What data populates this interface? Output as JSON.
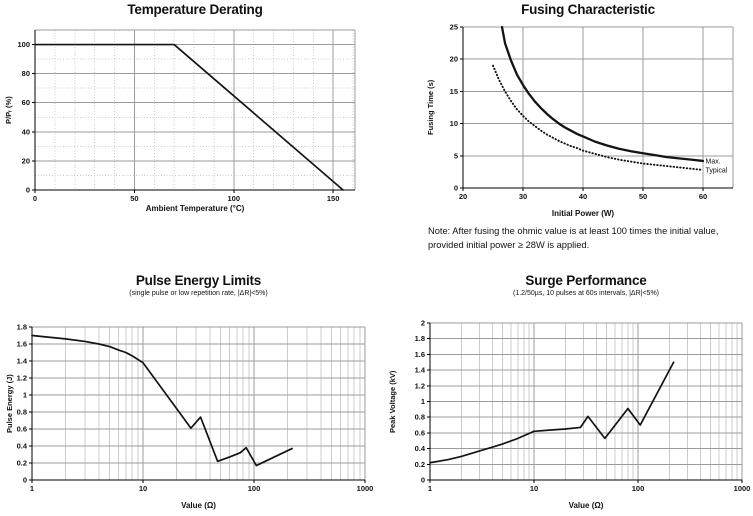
{
  "colors": {
    "curve": "#141414",
    "grid_major": "#9b9b9b",
    "grid_minor": "#cccccc",
    "axis": "#000000",
    "text": "#111111"
  },
  "chart_data": [
    {
      "type": "line",
      "title": "Temperature Derating",
      "subtitle": "",
      "xlabel": "Ambient Temperature (°C)",
      "ylabel": "P/Pᵣ (%)",
      "x_axis": {
        "scale": "linear",
        "min": 0,
        "max": 161,
        "ticks": [
          0,
          50,
          100,
          150
        ],
        "minor_step": 10,
        "minor_style": "dotted"
      },
      "y_axis": {
        "scale": "linear",
        "min": 0,
        "max": 110,
        "ticks": [
          0,
          20,
          40,
          60,
          80,
          100
        ],
        "minor_step": 10,
        "minor_style": "dotted"
      },
      "legend": "none",
      "grid": true,
      "series": [
        {
          "name": "derating-limit",
          "line": "solid",
          "bold": false,
          "label_at_end": false,
          "points": [
            [
              0,
              100
            ],
            [
              70,
              100
            ],
            [
              155,
              0
            ]
          ]
        }
      ]
    },
    {
      "type": "line",
      "title": "Fusing Characteristic",
      "subtitle": "",
      "xlabel": "Initial Power (W)",
      "ylabel": "Fusing Time (s)",
      "x_axis": {
        "scale": "linear",
        "min": 20,
        "max": 65,
        "ticks": [
          20,
          30,
          40,
          50,
          60
        ]
      },
      "y_axis": {
        "scale": "linear",
        "min": 0,
        "max": 25,
        "ticks": [
          0,
          5,
          10,
          15,
          20,
          25
        ]
      },
      "legend": "end-labels",
      "grid": true,
      "note": "Note: After fusing the ohmic value is at least 100 times the initial value, provided initial power ≥ 28W is applied.",
      "series": [
        {
          "name": "Max.",
          "line": "solid",
          "bold": true,
          "label_at_end": true,
          "points": [
            [
              26.5,
              25
            ],
            [
              27,
              22.5
            ],
            [
              28,
              19.8
            ],
            [
              29,
              17.6
            ],
            [
              30,
              16
            ],
            [
              31,
              14.6
            ],
            [
              32,
              13.4
            ],
            [
              33,
              12.4
            ],
            [
              34,
              11.5
            ],
            [
              35,
              10.7
            ],
            [
              36,
              10
            ],
            [
              37,
              9.4
            ],
            [
              38,
              8.9
            ],
            [
              39,
              8.4
            ],
            [
              40,
              8
            ],
            [
              42,
              7.2
            ],
            [
              44,
              6.6
            ],
            [
              46,
              6.1
            ],
            [
              48,
              5.7
            ],
            [
              50,
              5.4
            ],
            [
              52,
              5.1
            ],
            [
              54,
              4.8
            ],
            [
              56,
              4.6
            ],
            [
              58,
              4.4
            ],
            [
              60,
              4.2
            ]
          ]
        },
        {
          "name": "Typical",
          "line": "dotted",
          "bold": false,
          "label_at_end": true,
          "points": [
            [
              25,
              19
            ],
            [
              26,
              16.8
            ],
            [
              27,
              15
            ],
            [
              28,
              13.5
            ],
            [
              29,
              12.2
            ],
            [
              30,
              11.2
            ],
            [
              31,
              10.3
            ],
            [
              32,
              9.6
            ],
            [
              33,
              8.9
            ],
            [
              34,
              8.3
            ],
            [
              35,
              7.8
            ],
            [
              36,
              7.3
            ],
            [
              37,
              6.9
            ],
            [
              38,
              6.5
            ],
            [
              39,
              6.2
            ],
            [
              40,
              5.8
            ],
            [
              42,
              5.3
            ],
            [
              44,
              4.8
            ],
            [
              46,
              4.4
            ],
            [
              48,
              4.1
            ],
            [
              50,
              3.8
            ],
            [
              52,
              3.6
            ],
            [
              54,
              3.4
            ],
            [
              56,
              3.2
            ],
            [
              58,
              3.0
            ],
            [
              60,
              2.8
            ]
          ]
        }
      ]
    },
    {
      "type": "line",
      "title": "Pulse Energy Limits",
      "subtitle": "(single pulse or low repetition rate, |ΔR|<5%)",
      "xlabel": "Value (Ω)",
      "ylabel": "Pulse Energy (J)",
      "x_axis": {
        "scale": "log",
        "min": 1,
        "max": 1000,
        "ticks": [
          1,
          10,
          100,
          1000
        ]
      },
      "y_axis": {
        "scale": "linear",
        "min": 0,
        "max": 1.8,
        "ticks": [
          0,
          0.2,
          0.4,
          0.6,
          0.8,
          1,
          1.2,
          1.4,
          1.6,
          1.8
        ]
      },
      "legend": "none",
      "grid": true,
      "series": [
        {
          "name": "pulse-energy",
          "line": "solid",
          "bold": false,
          "label_at_end": false,
          "points": [
            [
              1,
              1.7
            ],
            [
              2,
              1.66
            ],
            [
              3,
              1.63
            ],
            [
              4,
              1.6
            ],
            [
              5,
              1.57
            ],
            [
              6,
              1.53
            ],
            [
              7,
              1.5
            ],
            [
              8,
              1.46
            ],
            [
              10,
              1.38
            ],
            [
              27,
              0.61
            ],
            [
              33,
              0.74
            ],
            [
              47,
              0.22
            ],
            [
              60,
              0.27
            ],
            [
              75,
              0.32
            ],
            [
              85,
              0.38
            ],
            [
              105,
              0.17
            ],
            [
              220,
              0.37
            ]
          ]
        }
      ]
    },
    {
      "type": "line",
      "title": "Surge Performance",
      "subtitle": "(1.2/50µs, 10 pulses at 60s intervals, |ΔR|<5%)",
      "xlabel": "Value (Ω)",
      "ylabel": "Peak Voltage (kV)",
      "x_axis": {
        "scale": "log",
        "min": 1,
        "max": 1000,
        "ticks": [
          1,
          10,
          100,
          1000
        ]
      },
      "y_axis": {
        "scale": "linear",
        "min": 0,
        "max": 2,
        "ticks": [
          0,
          0.2,
          0.4,
          0.6,
          0.8,
          1,
          1.2,
          1.4,
          1.6,
          1.8,
          2
        ]
      },
      "legend": "none",
      "grid": true,
      "series": [
        {
          "name": "peak-voltage",
          "line": "solid",
          "bold": false,
          "label_at_end": false,
          "points": [
            [
              1,
              0.22
            ],
            [
              1.5,
              0.26
            ],
            [
              2,
              0.3
            ],
            [
              3,
              0.37
            ],
            [
              4,
              0.42
            ],
            [
              5,
              0.46
            ],
            [
              7,
              0.53
            ],
            [
              10,
              0.62
            ],
            [
              14,
              0.635
            ],
            [
              20,
              0.65
            ],
            [
              28,
              0.67
            ],
            [
              33,
              0.81
            ],
            [
              48,
              0.53
            ],
            [
              80,
              0.91
            ],
            [
              105,
              0.7
            ],
            [
              220,
              1.5
            ]
          ]
        }
      ]
    }
  ]
}
